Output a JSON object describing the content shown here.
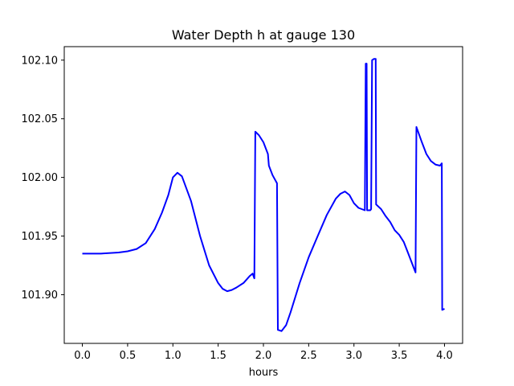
{
  "chart_data": {
    "type": "line",
    "title": "Water Depth h at gauge 130",
    "xlabel": "hours",
    "ylabel": "",
    "xlim": [
      -0.2,
      4.2
    ],
    "ylim": [
      101.8585,
      102.1115
    ],
    "xticks": [
      0.0,
      0.5,
      1.0,
      1.5,
      2.0,
      2.5,
      3.0,
      3.5,
      4.0
    ],
    "xtick_labels": [
      "0.0",
      "0.5",
      "1.0",
      "1.5",
      "2.0",
      "2.5",
      "3.0",
      "3.5",
      "4.0"
    ],
    "yticks": [
      101.9,
      101.95,
      102.0,
      102.05,
      102.1
    ],
    "ytick_labels": [
      "101.90",
      "101.95",
      "102.00",
      "102.05",
      "102.10"
    ],
    "grid": false,
    "series": [
      {
        "color": "#0000ff",
        "points": [
          [
            0.0,
            101.935
          ],
          [
            0.2,
            101.935
          ],
          [
            0.4,
            101.936
          ],
          [
            0.5,
            101.937
          ],
          [
            0.6,
            101.939
          ],
          [
            0.7,
            101.944
          ],
          [
            0.8,
            101.956
          ],
          [
            0.88,
            101.97
          ],
          [
            0.95,
            101.985
          ],
          [
            1.0,
            102.0
          ],
          [
            1.05,
            102.004
          ],
          [
            1.1,
            102.001
          ],
          [
            1.2,
            101.98
          ],
          [
            1.3,
            101.95
          ],
          [
            1.4,
            101.925
          ],
          [
            1.5,
            101.91
          ],
          [
            1.55,
            101.905
          ],
          [
            1.6,
            101.903
          ],
          [
            1.65,
            101.904
          ],
          [
            1.7,
            101.906
          ],
          [
            1.78,
            101.91
          ],
          [
            1.85,
            101.916
          ],
          [
            1.88,
            101.918
          ],
          [
            1.9,
            101.914
          ],
          [
            1.91,
            102.039
          ],
          [
            1.95,
            102.036
          ],
          [
            2.0,
            102.03
          ],
          [
            2.05,
            102.02
          ],
          [
            2.06,
            102.01
          ],
          [
            2.1,
            102.002
          ],
          [
            2.15,
            101.995
          ],
          [
            2.16,
            101.87
          ],
          [
            2.2,
            101.869
          ],
          [
            2.25,
            101.874
          ],
          [
            2.3,
            101.885
          ],
          [
            2.4,
            101.91
          ],
          [
            2.5,
            101.932
          ],
          [
            2.6,
            101.95
          ],
          [
            2.7,
            101.968
          ],
          [
            2.8,
            101.982
          ],
          [
            2.85,
            101.986
          ],
          [
            2.9,
            101.988
          ],
          [
            2.95,
            101.985
          ],
          [
            3.0,
            101.978
          ],
          [
            3.05,
            101.974
          ],
          [
            3.12,
            101.972
          ],
          [
            3.13,
            102.097
          ],
          [
            3.14,
            102.097
          ],
          [
            3.145,
            101.972
          ],
          [
            3.18,
            101.972
          ],
          [
            3.19,
            101.973
          ],
          [
            3.2,
            102.1
          ],
          [
            3.22,
            102.101
          ],
          [
            3.24,
            102.101
          ],
          [
            3.245,
            101.977
          ],
          [
            3.3,
            101.973
          ],
          [
            3.35,
            101.967
          ],
          [
            3.4,
            101.962
          ],
          [
            3.45,
            101.955
          ],
          [
            3.5,
            101.951
          ],
          [
            3.55,
            101.945
          ],
          [
            3.6,
            101.935
          ],
          [
            3.65,
            101.925
          ],
          [
            3.68,
            101.919
          ],
          [
            3.69,
            102.043
          ],
          [
            3.75,
            102.03
          ],
          [
            3.8,
            102.02
          ],
          [
            3.85,
            102.014
          ],
          [
            3.9,
            102.011
          ],
          [
            3.95,
            102.01
          ],
          [
            3.97,
            102.012
          ],
          [
            3.975,
            101.887
          ],
          [
            4.0,
            101.888
          ]
        ]
      }
    ]
  }
}
